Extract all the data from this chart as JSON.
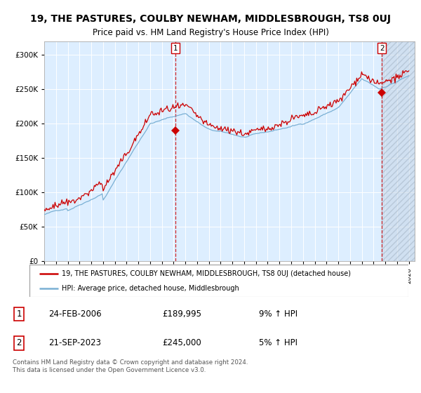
{
  "title": "19, THE PASTURES, COULBY NEWHAM, MIDDLESBROUGH, TS8 0UJ",
  "subtitle": "Price paid vs. HM Land Registry's House Price Index (HPI)",
  "legend_line1": "19, THE PASTURES, COULBY NEWHAM, MIDDLESBROUGH, TS8 0UJ (detached house)",
  "legend_line2": "HPI: Average price, detached house, Middlesbrough",
  "sale1_date": "24-FEB-2006",
  "sale1_price": "£189,995",
  "sale1_hpi": "9% ↑ HPI",
  "sale2_date": "21-SEP-2023",
  "sale2_price": "£245,000",
  "sale2_hpi": "5% ↑ HPI",
  "footer": "Contains HM Land Registry data © Crown copyright and database right 2024.\nThis data is licensed under the Open Government Licence v3.0.",
  "red_color": "#cc0000",
  "blue_color": "#7ab0d4",
  "bg_color": "#ddeeff",
  "grid_color": "#ffffff",
  "ylim": [
    0,
    320000
  ],
  "yticks": [
    0,
    50000,
    100000,
    150000,
    200000,
    250000,
    300000
  ],
  "sale1_x": 2006.15,
  "sale1_y": 189995,
  "sale2_x": 2023.72,
  "sale2_y": 245000,
  "xmin": 1995,
  "xmax": 2026.5
}
